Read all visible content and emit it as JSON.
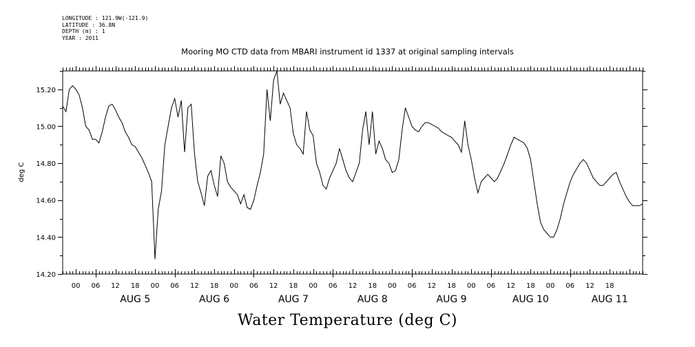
{
  "header": {
    "meta": [
      "LONGITUDE : 121.9W(-121.9)",
      "LATITUDE : 36.8N",
      "DEPTH (m) : 1",
      "YEAR : 2011"
    ],
    "title": "Mooring MO CTD data from MBARI instrument id 1337 at original sampling intervals",
    "bottom_title": "Water Temperature (deg C)"
  },
  "chart_data": {
    "type": "line",
    "title": "Mooring MO CTD data from MBARI instrument id 1337 at original sampling intervals",
    "xlabel": "",
    "ylabel": "deg C",
    "ylim": [
      14.2,
      15.3
    ],
    "xlim": [
      "2011-08-04T14:00",
      "2011-08-11T22:00"
    ],
    "y_ticks": [
      "14.20",
      "14.40",
      "14.60",
      "14.80",
      "15.00",
      "15.20"
    ],
    "x_hour_labels": [
      "00",
      "06",
      "12",
      "18",
      "00",
      "06",
      "12",
      "18",
      "00",
      "06",
      "12",
      "18",
      "00",
      "06",
      "12",
      "18",
      "00",
      "06",
      "12",
      "18",
      "00",
      "06",
      "12",
      "18",
      "00",
      "06",
      "12",
      "18"
    ],
    "x_day_labels": [
      "AUG  5",
      "AUG  6",
      "AUG  7",
      "AUG  8",
      "AUG  9",
      "AUG 10",
      "AUG 11"
    ],
    "grid": false,
    "series": [
      {
        "color": "#000000",
        "points": [
          [
            "2011-08-04T14:00",
            15.11
          ],
          [
            "2011-08-04T15:00",
            15.08
          ],
          [
            "2011-08-04T16:00",
            15.2
          ],
          [
            "2011-08-04T17:00",
            15.22
          ],
          [
            "2011-08-04T18:00",
            15.2
          ],
          [
            "2011-08-04T19:00",
            15.17
          ],
          [
            "2011-08-04T20:00",
            15.1
          ],
          [
            "2011-08-04T21:00",
            15.0
          ],
          [
            "2011-08-04T22:00",
            14.98
          ],
          [
            "2011-08-04T23:00",
            14.93
          ],
          [
            "2011-08-05T00:00",
            14.93
          ],
          [
            "2011-08-05T01:00",
            14.91
          ],
          [
            "2011-08-05T02:00",
            14.97
          ],
          [
            "2011-08-05T03:00",
            15.05
          ],
          [
            "2011-08-05T04:00",
            15.11
          ],
          [
            "2011-08-05T05:00",
            15.12
          ],
          [
            "2011-08-05T06:00",
            15.09
          ],
          [
            "2011-08-05T07:00",
            15.05
          ],
          [
            "2011-08-05T08:00",
            15.02
          ],
          [
            "2011-08-05T09:00",
            14.97
          ],
          [
            "2011-08-05T10:00",
            14.94
          ],
          [
            "2011-08-05T11:00",
            14.9
          ],
          [
            "2011-08-05T12:00",
            14.89
          ],
          [
            "2011-08-05T13:00",
            14.86
          ],
          [
            "2011-08-05T14:00",
            14.83
          ],
          [
            "2011-08-05T15:00",
            14.79
          ],
          [
            "2011-08-05T16:00",
            14.75
          ],
          [
            "2011-08-05T17:00",
            14.7
          ],
          [
            "2011-08-05T18:00",
            14.28
          ],
          [
            "2011-08-05T19:00",
            14.55
          ],
          [
            "2011-08-05T20:00",
            14.65
          ],
          [
            "2011-08-05T21:00",
            14.9
          ],
          [
            "2011-08-05T22:00",
            15.0
          ],
          [
            "2011-08-05T23:00",
            15.1
          ],
          [
            "2011-08-06T00:00",
            15.15
          ],
          [
            "2011-08-06T01:00",
            15.05
          ],
          [
            "2011-08-06T02:00",
            15.14
          ],
          [
            "2011-08-06T03:00",
            14.86
          ],
          [
            "2011-08-06T04:00",
            15.1
          ],
          [
            "2011-08-06T05:00",
            15.12
          ],
          [
            "2011-08-06T06:00",
            14.85
          ],
          [
            "2011-08-06T07:00",
            14.7
          ],
          [
            "2011-08-06T08:00",
            14.64
          ],
          [
            "2011-08-06T09:00",
            14.57
          ],
          [
            "2011-08-06T10:00",
            14.73
          ],
          [
            "2011-08-06T11:00",
            14.76
          ],
          [
            "2011-08-06T12:00",
            14.68
          ],
          [
            "2011-08-06T13:00",
            14.62
          ],
          [
            "2011-08-06T14:00",
            14.84
          ],
          [
            "2011-08-06T15:00",
            14.8
          ],
          [
            "2011-08-06T16:00",
            14.7
          ],
          [
            "2011-08-06T17:00",
            14.67
          ],
          [
            "2011-08-06T18:00",
            14.65
          ],
          [
            "2011-08-06T19:00",
            14.63
          ],
          [
            "2011-08-06T20:00",
            14.58
          ],
          [
            "2011-08-06T21:00",
            14.63
          ],
          [
            "2011-08-06T22:00",
            14.56
          ],
          [
            "2011-08-06T23:00",
            14.55
          ],
          [
            "2011-08-07T00:00",
            14.6
          ],
          [
            "2011-08-07T01:00",
            14.68
          ],
          [
            "2011-08-07T02:00",
            14.75
          ],
          [
            "2011-08-07T03:00",
            14.85
          ],
          [
            "2011-08-07T04:00",
            15.2
          ],
          [
            "2011-08-07T05:00",
            15.03
          ],
          [
            "2011-08-07T06:00",
            15.25
          ],
          [
            "2011-08-07T07:00",
            15.3
          ],
          [
            "2011-08-07T08:00",
            15.12
          ],
          [
            "2011-08-07T09:00",
            15.18
          ],
          [
            "2011-08-07T10:00",
            15.14
          ],
          [
            "2011-08-07T11:00",
            15.1
          ],
          [
            "2011-08-07T12:00",
            14.96
          ],
          [
            "2011-08-07T13:00",
            14.9
          ],
          [
            "2011-08-07T14:00",
            14.88
          ],
          [
            "2011-08-07T15:00",
            14.85
          ],
          [
            "2011-08-07T16:00",
            15.08
          ],
          [
            "2011-08-07T17:00",
            14.98
          ],
          [
            "2011-08-07T18:00",
            14.95
          ],
          [
            "2011-08-07T19:00",
            14.8
          ],
          [
            "2011-08-07T20:00",
            14.75
          ],
          [
            "2011-08-07T21:00",
            14.68
          ],
          [
            "2011-08-07T22:00",
            14.66
          ],
          [
            "2011-08-07T23:00",
            14.72
          ],
          [
            "2011-08-08T00:00",
            14.76
          ],
          [
            "2011-08-08T01:00",
            14.8
          ],
          [
            "2011-08-08T02:00",
            14.88
          ],
          [
            "2011-08-08T03:00",
            14.82
          ],
          [
            "2011-08-08T04:00",
            14.76
          ],
          [
            "2011-08-08T05:00",
            14.72
          ],
          [
            "2011-08-08T06:00",
            14.7
          ],
          [
            "2011-08-08T07:00",
            14.75
          ],
          [
            "2011-08-08T08:00",
            14.8
          ],
          [
            "2011-08-08T09:00",
            14.98
          ],
          [
            "2011-08-08T10:00",
            15.08
          ],
          [
            "2011-08-08T11:00",
            14.9
          ],
          [
            "2011-08-08T12:00",
            15.08
          ],
          [
            "2011-08-08T13:00",
            14.85
          ],
          [
            "2011-08-08T14:00",
            14.92
          ],
          [
            "2011-08-08T15:00",
            14.88
          ],
          [
            "2011-08-08T16:00",
            14.82
          ],
          [
            "2011-08-08T17:00",
            14.8
          ],
          [
            "2011-08-08T18:00",
            14.75
          ],
          [
            "2011-08-08T19:00",
            14.76
          ],
          [
            "2011-08-08T20:00",
            14.82
          ],
          [
            "2011-08-08T21:00",
            14.98
          ],
          [
            "2011-08-08T22:00",
            15.1
          ],
          [
            "2011-08-08T23:00",
            15.05
          ],
          [
            "2011-08-09T00:00",
            15.0
          ],
          [
            "2011-08-09T01:00",
            14.98
          ],
          [
            "2011-08-09T02:00",
            14.97
          ],
          [
            "2011-08-09T03:00",
            15.0
          ],
          [
            "2011-08-09T04:00",
            15.02
          ],
          [
            "2011-08-09T05:00",
            15.02
          ],
          [
            "2011-08-09T06:00",
            15.01
          ],
          [
            "2011-08-09T07:00",
            15.0
          ],
          [
            "2011-08-09T08:00",
            14.99
          ],
          [
            "2011-08-09T09:00",
            14.97
          ],
          [
            "2011-08-09T10:00",
            14.96
          ],
          [
            "2011-08-09T11:00",
            14.95
          ],
          [
            "2011-08-09T12:00",
            14.94
          ],
          [
            "2011-08-09T13:00",
            14.92
          ],
          [
            "2011-08-09T14:00",
            14.9
          ],
          [
            "2011-08-09T15:00",
            14.86
          ],
          [
            "2011-08-09T16:00",
            15.03
          ],
          [
            "2011-08-09T17:00",
            14.9
          ],
          [
            "2011-08-09T18:00",
            14.82
          ],
          [
            "2011-08-09T19:00",
            14.72
          ],
          [
            "2011-08-09T20:00",
            14.64
          ],
          [
            "2011-08-09T21:00",
            14.7
          ],
          [
            "2011-08-09T22:00",
            14.72
          ],
          [
            "2011-08-09T23:00",
            14.74
          ],
          [
            "2011-08-10T00:00",
            14.72
          ],
          [
            "2011-08-10T01:00",
            14.7
          ],
          [
            "2011-08-10T02:00",
            14.72
          ],
          [
            "2011-08-10T03:00",
            14.76
          ],
          [
            "2011-08-10T04:00",
            14.8
          ],
          [
            "2011-08-10T05:00",
            14.85
          ],
          [
            "2011-08-10T06:00",
            14.9
          ],
          [
            "2011-08-10T07:00",
            14.94
          ],
          [
            "2011-08-10T08:00",
            14.93
          ],
          [
            "2011-08-10T09:00",
            14.92
          ],
          [
            "2011-08-10T10:00",
            14.91
          ],
          [
            "2011-08-10T11:00",
            14.88
          ],
          [
            "2011-08-10T12:00",
            14.82
          ],
          [
            "2011-08-10T13:00",
            14.7
          ],
          [
            "2011-08-10T14:00",
            14.58
          ],
          [
            "2011-08-10T15:00",
            14.48
          ],
          [
            "2011-08-10T16:00",
            14.44
          ],
          [
            "2011-08-10T17:00",
            14.42
          ],
          [
            "2011-08-10T18:00",
            14.4
          ],
          [
            "2011-08-10T19:00",
            14.4
          ],
          [
            "2011-08-10T20:00",
            14.44
          ],
          [
            "2011-08-10T21:00",
            14.5
          ],
          [
            "2011-08-10T22:00",
            14.58
          ],
          [
            "2011-08-10T23:00",
            14.64
          ],
          [
            "2011-08-11T00:00",
            14.7
          ],
          [
            "2011-08-11T01:00",
            14.74
          ],
          [
            "2011-08-11T02:00",
            14.77
          ],
          [
            "2011-08-11T03:00",
            14.8
          ],
          [
            "2011-08-11T04:00",
            14.82
          ],
          [
            "2011-08-11T05:00",
            14.8
          ],
          [
            "2011-08-11T06:00",
            14.76
          ],
          [
            "2011-08-11T07:00",
            14.72
          ],
          [
            "2011-08-11T08:00",
            14.7
          ],
          [
            "2011-08-11T09:00",
            14.68
          ],
          [
            "2011-08-11T10:00",
            14.68
          ],
          [
            "2011-08-11T11:00",
            14.7
          ],
          [
            "2011-08-11T12:00",
            14.72
          ],
          [
            "2011-08-11T13:00",
            14.74
          ],
          [
            "2011-08-11T14:00",
            14.75
          ],
          [
            "2011-08-11T15:00",
            14.7
          ],
          [
            "2011-08-11T16:00",
            14.66
          ],
          [
            "2011-08-11T17:00",
            14.62
          ],
          [
            "2011-08-11T18:00",
            14.59
          ],
          [
            "2011-08-11T19:00",
            14.57
          ],
          [
            "2011-08-11T20:00",
            14.57
          ],
          [
            "2011-08-11T21:00",
            14.57
          ],
          [
            "2011-08-11T22:00",
            14.58
          ]
        ]
      }
    ]
  }
}
